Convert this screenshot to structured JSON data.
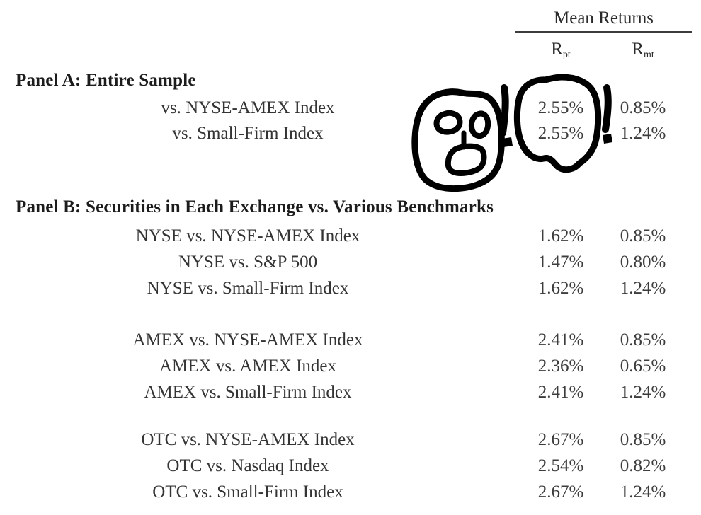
{
  "table": {
    "header": {
      "group_label": "Mean Returns",
      "columns": [
        {
          "base": "R",
          "sub": "pt"
        },
        {
          "base": "R",
          "sub": "mt"
        }
      ]
    },
    "panel_a": {
      "title": "Panel A: Entire Sample",
      "rows": [
        {
          "label": "vs. NYSE-AMEX Index",
          "rpt": "2.55%",
          "rmt": "0.85%"
        },
        {
          "label": "vs. Small-Firm Index",
          "rpt": "2.55%",
          "rmt": "1.24%"
        }
      ]
    },
    "panel_b": {
      "title": "Panel B: Securities in Each Exchange vs. Various Benchmarks",
      "groups": [
        [
          {
            "label": "NYSE vs. NYSE-AMEX Index",
            "rpt": "1.62%",
            "rmt": "0.85%"
          },
          {
            "label": "NYSE vs. S&P 500",
            "rpt": "1.47%",
            "rmt": "0.80%"
          },
          {
            "label": "NYSE vs. Small-Firm Index",
            "rpt": "1.62%",
            "rmt": "1.24%"
          }
        ],
        [
          {
            "label": "AMEX vs. NYSE-AMEX Index",
            "rpt": "2.41%",
            "rmt": "0.85%"
          },
          {
            "label": "AMEX vs. AMEX Index",
            "rpt": "2.36%",
            "rmt": "0.65%"
          },
          {
            "label": "AMEX vs. Small-Firm Index",
            "rpt": "2.41%",
            "rmt": "1.24%"
          }
        ],
        [
          {
            "label": "OTC vs. NYSE-AMEX Index",
            "rpt": "2.67%",
            "rmt": "0.85%"
          },
          {
            "label": "OTC vs. Nasdaq Index",
            "rpt": "2.54%",
            "rmt": "0.82%"
          },
          {
            "label": "OTC vs. Small-Firm Index",
            "rpt": "2.67%",
            "rmt": "1.24%"
          }
        ]
      ]
    }
  },
  "annotations": {
    "ink_color": "#000000",
    "items": [
      "hand-drawn face doodle",
      "hand-drawn exclamation mark",
      "hand-drawn circle around Panel A Rpt values (2.55% / 2.55%)",
      "hand-drawn exclamation mark"
    ]
  }
}
